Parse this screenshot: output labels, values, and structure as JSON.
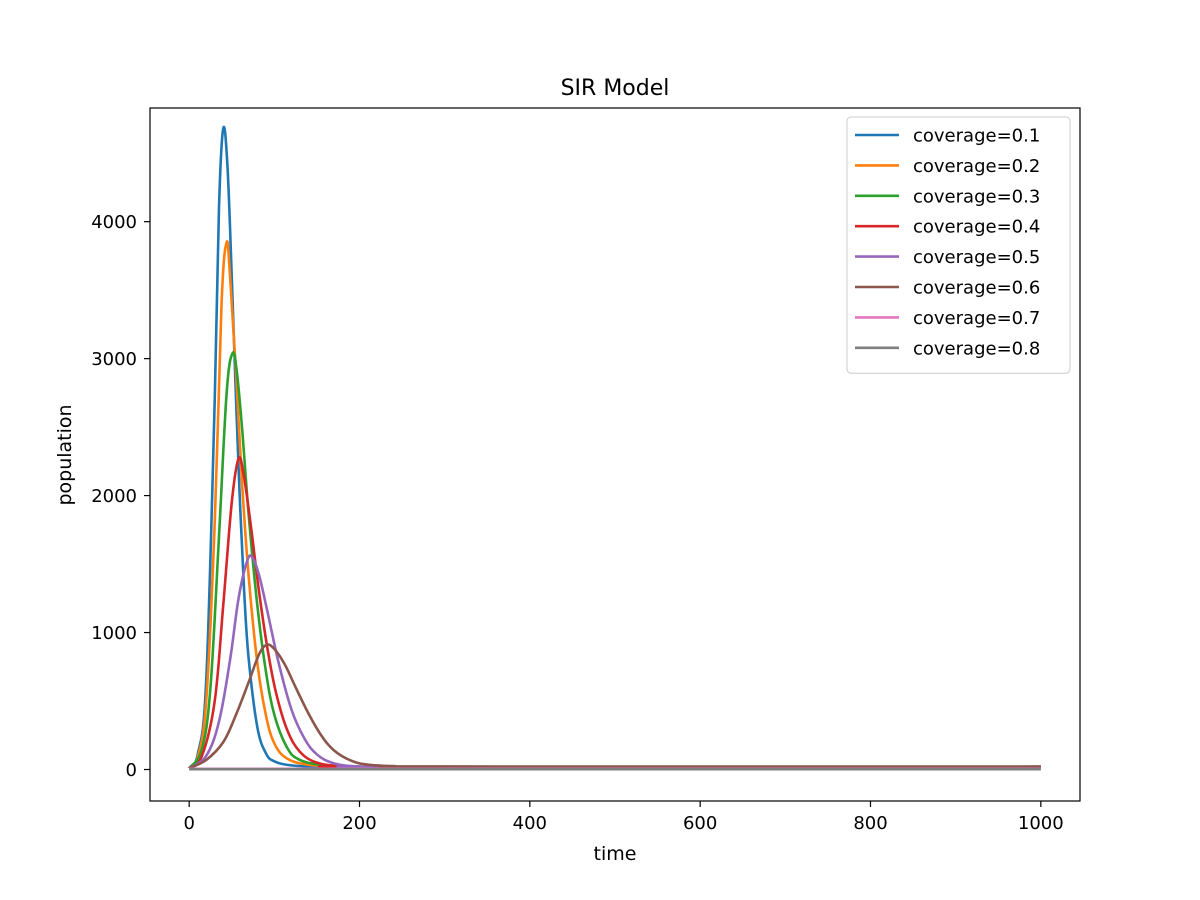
{
  "chart_data": {
    "type": "line",
    "title": "SIR Model",
    "xlabel": "time",
    "ylabel": "population",
    "xlim": [
      -46,
      1046
    ],
    "ylim": [
      -230,
      4830
    ],
    "xticks": [
      0,
      200,
      400,
      600,
      800,
      1000
    ],
    "yticks": [
      0,
      1000,
      2000,
      3000,
      4000
    ],
    "grid": false,
    "legend_position": "top-right",
    "series": [
      {
        "name": "coverage=0.1",
        "color": "#1f77b4",
        "points": [
          [
            0,
            10
          ],
          [
            10,
            110
          ],
          [
            20,
            650
          ],
          [
            30,
            2700
          ],
          [
            35,
            4100
          ],
          [
            40,
            4680
          ],
          [
            45,
            4400
          ],
          [
            50,
            3600
          ],
          [
            55,
            2700
          ],
          [
            60,
            1900
          ],
          [
            65,
            1250
          ],
          [
            70,
            800
          ],
          [
            80,
            310
          ],
          [
            90,
            120
          ],
          [
            100,
            60
          ],
          [
            120,
            30
          ],
          [
            160,
            20
          ],
          [
            220,
            20
          ],
          [
            1000,
            20
          ]
        ]
      },
      {
        "name": "coverage=0.2",
        "color": "#ff7f0e",
        "points": [
          [
            0,
            10
          ],
          [
            10,
            90
          ],
          [
            20,
            500
          ],
          [
            30,
            1800
          ],
          [
            38,
            3400
          ],
          [
            44,
            3850
          ],
          [
            48,
            3600
          ],
          [
            55,
            2900
          ],
          [
            62,
            2100
          ],
          [
            70,
            1400
          ],
          [
            80,
            780
          ],
          [
            90,
            400
          ],
          [
            100,
            190
          ],
          [
            115,
            80
          ],
          [
            140,
            35
          ],
          [
            180,
            22
          ],
          [
            240,
            20
          ],
          [
            1000,
            20
          ]
        ]
      },
      {
        "name": "coverage=0.3",
        "color": "#2ca02c",
        "points": [
          [
            0,
            10
          ],
          [
            15,
            150
          ],
          [
            25,
            600
          ],
          [
            35,
            1700
          ],
          [
            44,
            2750
          ],
          [
            51,
            3040
          ],
          [
            56,
            2900
          ],
          [
            62,
            2500
          ],
          [
            70,
            1850
          ],
          [
            80,
            1200
          ],
          [
            90,
            720
          ],
          [
            100,
            400
          ],
          [
            115,
            160
          ],
          [
            130,
            70
          ],
          [
            160,
            30
          ],
          [
            200,
            22
          ],
          [
            260,
            20
          ],
          [
            1000,
            20
          ]
        ]
      },
      {
        "name": "coverage=0.4",
        "color": "#d62728",
        "points": [
          [
            0,
            10
          ],
          [
            15,
            100
          ],
          [
            30,
            500
          ],
          [
            40,
            1200
          ],
          [
            50,
            1950
          ],
          [
            58,
            2270
          ],
          [
            64,
            2150
          ],
          [
            72,
            1800
          ],
          [
            82,
            1300
          ],
          [
            92,
            880
          ],
          [
            102,
            560
          ],
          [
            115,
            290
          ],
          [
            130,
            130
          ],
          [
            150,
            50
          ],
          [
            180,
            25
          ],
          [
            230,
            20
          ],
          [
            1000,
            20
          ]
        ]
      },
      {
        "name": "coverage=0.5",
        "color": "#9467bd",
        "points": [
          [
            0,
            10
          ],
          [
            20,
            100
          ],
          [
            35,
            350
          ],
          [
            48,
            800
          ],
          [
            58,
            1250
          ],
          [
            68,
            1520
          ],
          [
            74,
            1550
          ],
          [
            82,
            1420
          ],
          [
            92,
            1150
          ],
          [
            105,
            780
          ],
          [
            120,
            440
          ],
          [
            135,
            230
          ],
          [
            150,
            110
          ],
          [
            170,
            45
          ],
          [
            200,
            22
          ],
          [
            250,
            20
          ],
          [
            1000,
            20
          ]
        ]
      },
      {
        "name": "coverage=0.6",
        "color": "#8c564b",
        "points": [
          [
            0,
            10
          ],
          [
            20,
            70
          ],
          [
            40,
            200
          ],
          [
            55,
            400
          ],
          [
            70,
            640
          ],
          [
            82,
            840
          ],
          [
            91,
            910
          ],
          [
            100,
            880
          ],
          [
            112,
            770
          ],
          [
            125,
            600
          ],
          [
            140,
            410
          ],
          [
            155,
            250
          ],
          [
            170,
            140
          ],
          [
            190,
            65
          ],
          [
            210,
            35
          ],
          [
            240,
            25
          ],
          [
            300,
            22
          ],
          [
            1000,
            22
          ]
        ]
      },
      {
        "name": "coverage=0.7",
        "color": "#e377c2",
        "points": [
          [
            0,
            5
          ],
          [
            1000,
            5
          ]
        ]
      },
      {
        "name": "coverage=0.8",
        "color": "#7f7f7f",
        "points": [
          [
            0,
            2
          ],
          [
            1000,
            2
          ]
        ]
      }
    ]
  }
}
